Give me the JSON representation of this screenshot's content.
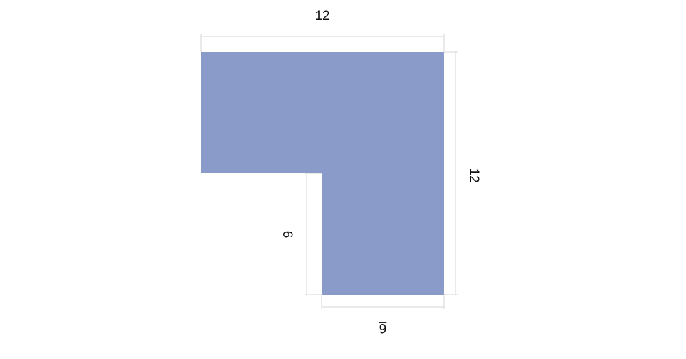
{
  "dimensions": {
    "top": "12",
    "right": "12",
    "left": "6",
    "bottom": "6"
  }
}
